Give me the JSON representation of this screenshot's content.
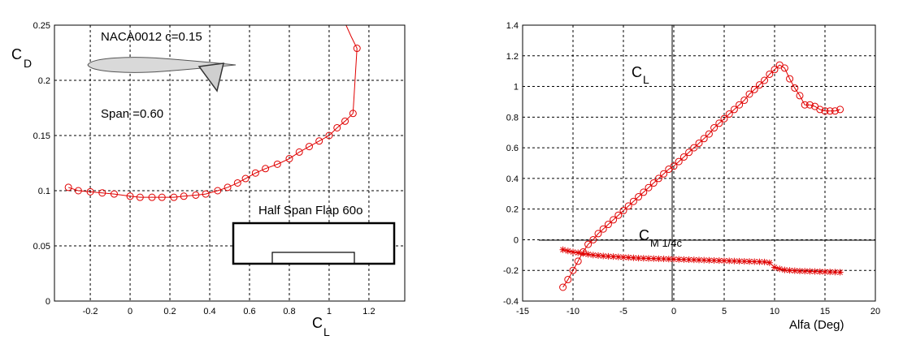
{
  "chart_data": [
    {
      "type": "line",
      "xlabel": "C",
      "xlabel_sub": "L",
      "ylabel": "C",
      "ylabel_sub": "D",
      "xlim": [
        -0.38,
        1.38
      ],
      "ylim": [
        0,
        0.25
      ],
      "xticks": [
        -0.2,
        0,
        0.2,
        0.4,
        0.6,
        0.8,
        1,
        1.2
      ],
      "xtick_labels": [
        "-0.2",
        "0",
        "0.2",
        "0.4",
        "0.6",
        "0.8",
        "1",
        "1.2"
      ],
      "yticks": [
        0,
        0.05,
        0.1,
        0.15,
        0.2,
        0.25
      ],
      "ytick_labels": [
        "0",
        "0.05",
        "0.1",
        "0.15",
        "0.2",
        "0.25"
      ],
      "grid": true,
      "series": [
        {
          "color": "#e00000",
          "marker": "circle",
          "x": [
            -0.31,
            -0.26,
            -0.2,
            -0.14,
            -0.08,
            0.0,
            0.05,
            0.11,
            0.16,
            0.22,
            0.27,
            0.33,
            0.38,
            0.44,
            0.49,
            0.54,
            0.58,
            0.63,
            0.68,
            0.74,
            0.8,
            0.85,
            0.9,
            0.95,
            1.0,
            1.04,
            1.08,
            1.12
          ],
          "y": [
            0.103,
            0.1,
            0.099,
            0.098,
            0.097,
            0.095,
            0.094,
            0.094,
            0.094,
            0.094,
            0.095,
            0.096,
            0.097,
            0.1,
            0.103,
            0.107,
            0.111,
            0.116,
            0.12,
            0.124,
            0.129,
            0.135,
            0.14,
            0.145,
            0.15,
            0.157,
            0.163,
            0.17
          ],
          "tail_x": [
            1.12,
            1.14,
            1.11,
            1.08
          ],
          "tail_y": [
            0.17,
            0.229,
            0.24,
            0.252
          ]
        }
      ],
      "annotations": {
        "airfoil_label": "NACA0012  c=0.15",
        "span_label": "Span =0.60",
        "flap_label": "Half Span Flap 60o"
      }
    },
    {
      "type": "line",
      "xlabel": "Alfa (Deg)",
      "xlim": [
        -15,
        20
      ],
      "ylim": [
        -0.4,
        1.4
      ],
      "xticks": [
        -15,
        -10,
        -5,
        0,
        5,
        10,
        15,
        20
      ],
      "xtick_labels": [
        "-15",
        "-10",
        "-5",
        "0",
        "5",
        "10",
        "15",
        "20"
      ],
      "yticks": [
        -0.4,
        -0.2,
        0,
        0.2,
        0.4,
        0.6,
        0.8,
        1,
        1.2,
        1.4
      ],
      "ytick_labels": [
        "-0.4",
        "-0.2",
        "0",
        "0.2",
        "0.4",
        "0.6",
        "0.8",
        "1",
        "1.2",
        "1.4"
      ],
      "grid": true,
      "series": [
        {
          "name": "C_L",
          "label_main": "C",
          "label_sub": "L",
          "color": "#e00000",
          "marker": "circle",
          "x": [
            -11,
            -10.5,
            -10,
            -9.5,
            -9,
            -8.5,
            -8,
            -7.5,
            -7,
            -6.5,
            -6,
            -5.5,
            -5,
            -4.5,
            -4,
            -3.5,
            -3,
            -2.5,
            -2,
            -1.5,
            -1,
            -0.5,
            0,
            0.5,
            1,
            1.5,
            2,
            2.5,
            3,
            3.5,
            4,
            4.5,
            5,
            5.5,
            6,
            6.5,
            7,
            7.5,
            8,
            8.5,
            9,
            9.5,
            10,
            10.5,
            11,
            11.5,
            12,
            12.5,
            13,
            13.5,
            14,
            14.5,
            15,
            15.5,
            16,
            16.5
          ],
          "y": [
            -0.31,
            -0.26,
            -0.2,
            -0.14,
            -0.08,
            -0.03,
            0.0,
            0.04,
            0.07,
            0.1,
            0.13,
            0.16,
            0.19,
            0.22,
            0.25,
            0.28,
            0.31,
            0.34,
            0.37,
            0.4,
            0.43,
            0.46,
            0.48,
            0.51,
            0.54,
            0.57,
            0.6,
            0.63,
            0.66,
            0.69,
            0.73,
            0.76,
            0.79,
            0.82,
            0.85,
            0.88,
            0.91,
            0.95,
            0.98,
            1.01,
            1.04,
            1.08,
            1.11,
            1.14,
            1.12,
            1.05,
            0.99,
            0.94,
            0.88,
            0.88,
            0.87,
            0.85,
            0.84,
            0.84,
            0.84,
            0.85
          ]
        },
        {
          "name": "C_M1/4c",
          "label_main": "C",
          "label_sub": "M 1/4c",
          "color": "#e00000",
          "marker": "star",
          "x": [
            -11,
            -10.5,
            -10,
            -9.5,
            -9,
            -8.5,
            -8,
            -7.5,
            -7,
            -6.5,
            -6,
            -5.5,
            -5,
            -4.5,
            -4,
            -3.5,
            -3,
            -2.5,
            -2,
            -1.5,
            -1,
            -0.5,
            0,
            0.5,
            1,
            1.5,
            2,
            2.5,
            3,
            3.5,
            4,
            4.5,
            5,
            5.5,
            6,
            6.5,
            7,
            7.5,
            8,
            8.5,
            9,
            9.5,
            10,
            10.5,
            11,
            11.5,
            12,
            12.5,
            13,
            13.5,
            14,
            14.5,
            15,
            15.5,
            16,
            16.5
          ],
          "y": [
            -0.065,
            -0.073,
            -0.08,
            -0.085,
            -0.09,
            -0.095,
            -0.1,
            -0.103,
            -0.106,
            -0.108,
            -0.11,
            -0.112,
            -0.114,
            -0.116,
            -0.118,
            -0.12,
            -0.121,
            -0.122,
            -0.123,
            -0.124,
            -0.125,
            -0.126,
            -0.127,
            -0.128,
            -0.129,
            -0.13,
            -0.131,
            -0.132,
            -0.133,
            -0.134,
            -0.135,
            -0.136,
            -0.137,
            -0.138,
            -0.139,
            -0.14,
            -0.141,
            -0.142,
            -0.143,
            -0.144,
            -0.145,
            -0.15,
            -0.18,
            -0.19,
            -0.197,
            -0.2,
            -0.202,
            -0.204,
            -0.205,
            -0.206,
            -0.207,
            -0.208,
            -0.209,
            -0.21,
            -0.211,
            -0.212
          ]
        }
      ]
    }
  ]
}
